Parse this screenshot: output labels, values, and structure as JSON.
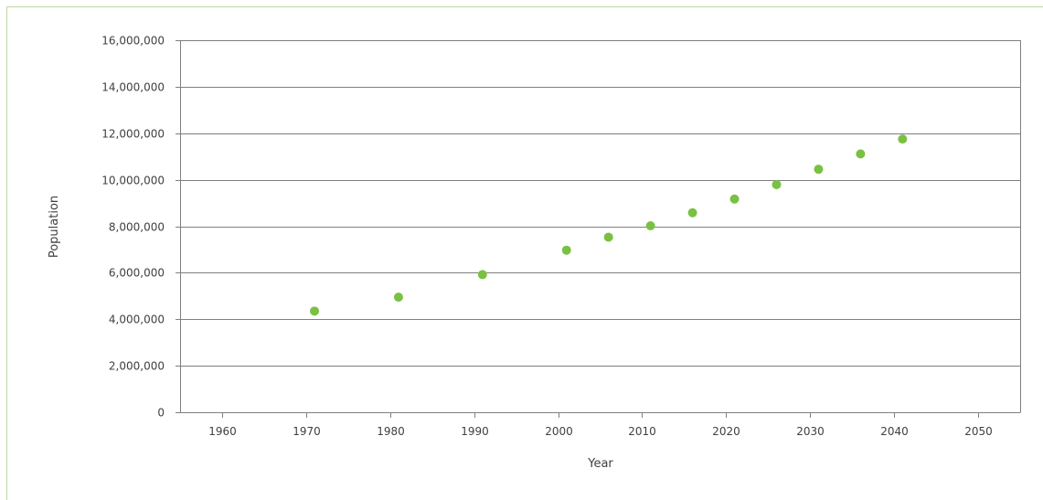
{
  "chart_data": {
    "type": "scatter",
    "title": "",
    "xlabel": "Year",
    "ylabel": "Population",
    "xlim": [
      1955,
      2055
    ],
    "ylim": [
      0,
      16000000
    ],
    "x_ticks": [
      1960,
      1970,
      1980,
      1990,
      2000,
      2010,
      2020,
      2030,
      2040,
      2050
    ],
    "y_ticks": [
      0,
      2000000,
      4000000,
      6000000,
      8000000,
      10000000,
      12000000,
      14000000,
      16000000
    ],
    "y_tick_labels": [
      "0",
      "2,000,000",
      "4,000,000",
      "6,000,000",
      "8,000,000",
      "10,000,000",
      "12,000,000",
      "14,000,000",
      "16,000,000"
    ],
    "x_tick_labels": [
      "1960",
      "1970",
      "1980",
      "1990",
      "2000",
      "2010",
      "2020",
      "2030",
      "2040",
      "2050"
    ],
    "grid": "horizontal",
    "legend": "none",
    "marker_color": "#7ac143",
    "series": [
      {
        "points": [
          {
            "x": 1971,
            "y": 4350000
          },
          {
            "x": 1981,
            "y": 4950000
          },
          {
            "x": 1991,
            "y": 5920000
          },
          {
            "x": 2001,
            "y": 6970000
          },
          {
            "x": 2006,
            "y": 7530000
          },
          {
            "x": 2011,
            "y": 8020000
          },
          {
            "x": 2016,
            "y": 8580000
          },
          {
            "x": 2021,
            "y": 9170000
          },
          {
            "x": 2026,
            "y": 9790000
          },
          {
            "x": 2031,
            "y": 10450000
          },
          {
            "x": 2036,
            "y": 11110000
          },
          {
            "x": 2041,
            "y": 11750000
          }
        ]
      }
    ]
  }
}
